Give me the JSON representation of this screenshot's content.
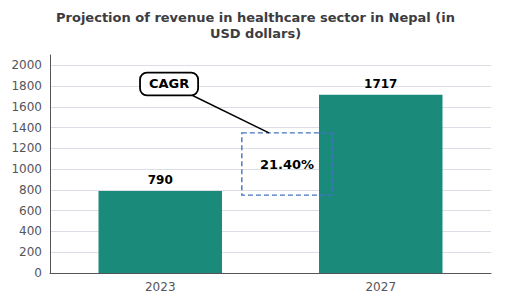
{
  "chart_data": {
    "type": "bar",
    "title": "Projection of revenue in healthcare sector in Nepal (in\nUSD dollars)",
    "categories": [
      "2023",
      "2027"
    ],
    "values": [
      790,
      1717
    ],
    "color": "#1a8a7a",
    "ylim": [
      0,
      2100
    ],
    "yticks": [
      0,
      200,
      400,
      600,
      800,
      1000,
      1200,
      1400,
      1600,
      1800,
      2000
    ],
    "grid": true,
    "data_labels": true,
    "annotations": [
      {
        "text": "21.40%",
        "color": "#4472c4"
      },
      {
        "text": "CAGR"
      }
    ]
  }
}
